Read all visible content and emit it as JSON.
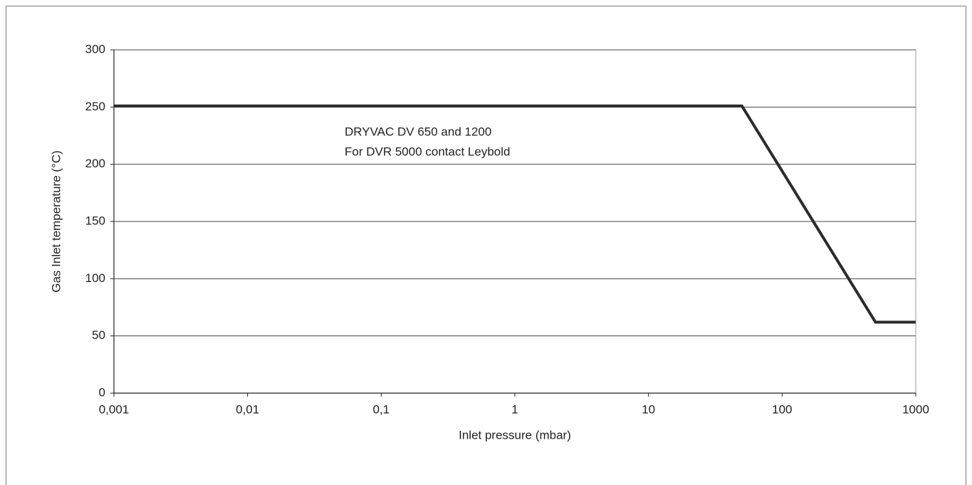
{
  "chart_data": {
    "type": "line",
    "x_label": "Inlet pressure (mbar)",
    "y_label": "Gas Inlet temperature (°C)",
    "annotations": [
      "DRYVAC DV 650 and 1200",
      "For DVR 5000 contact Leybold"
    ],
    "x": [
      0.001,
      50,
      500,
      1000
    ],
    "series": [
      {
        "color": "#2b2b2b",
        "values": [
          251,
          251,
          62,
          62
        ]
      }
    ],
    "xscale": "log",
    "xlim": [
      0.001,
      1000
    ],
    "xticks": [
      {
        "value": 0.001,
        "label": "0,001"
      },
      {
        "value": 0.01,
        "label": "0,01"
      },
      {
        "value": 0.1,
        "label": "0,1"
      },
      1,
      10,
      100,
      1000
    ],
    "ylim": [
      0,
      300
    ],
    "yticks": [
      0,
      50,
      100,
      150,
      200,
      250,
      300
    ],
    "grid": true
  }
}
